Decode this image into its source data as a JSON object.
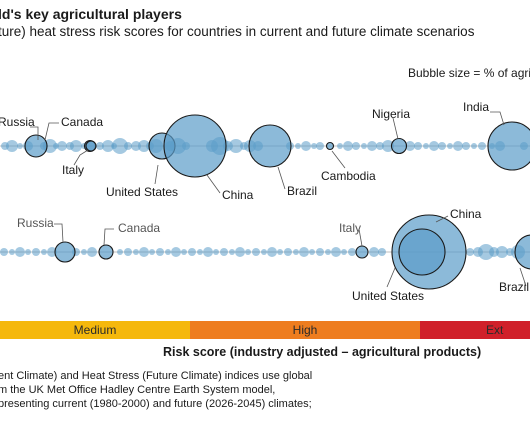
{
  "title": "ld's key agricultural players",
  "subtitle": "ture) heat stress risk scores for countries in current and future climate scenarios",
  "bubble_note": "Bubble size = % of agricu",
  "axis_title": "Risk score (industry adjusted – agricultural products)",
  "footnote_lines": [
    "ent Climate) and Heat Stress (Future Climate) indices use global",
    "m the UK Met Office Hadley Centre Earth System model,",
    "presenting current (1980-2000) and future (2026-2045) climates;"
  ],
  "risk_bands": [
    {
      "label": "Medium",
      "color": "#f5b80c"
    },
    {
      "label": "High",
      "color": "#ee7d1f"
    },
    {
      "label": "Ext",
      "color": "#d0202a"
    }
  ],
  "colors": {
    "bubble_fill": "#5b9cc9",
    "highlight_stroke": "#1a1a1a",
    "axis_line": "#bfbfbf"
  },
  "chart_data": {
    "type": "scatter",
    "x_scale": "risk score (industry adjusted)",
    "size_encoding": "% of agricu",
    "series": [
      {
        "highlighted": [
          {
            "label": "Russia",
            "x": 36,
            "r": 11
          },
          {
            "label": "Canada",
            "x": 90,
            "r": 5.5
          },
          {
            "label": "Italy",
            "x": 91,
            "r": 5
          },
          {
            "label": "United States",
            "x": 162,
            "r": 13
          },
          {
            "label": "China",
            "x": 195,
            "r": 31
          },
          {
            "label": "Brazil",
            "x": 270,
            "r": 21
          },
          {
            "label": "Cambodia",
            "x": 330,
            "r": 3.5
          },
          {
            "label": "Nigeria",
            "x": 399,
            "r": 7.5
          },
          {
            "label": "India",
            "x": 512,
            "r": 24
          }
        ],
        "others": [
          [
            5,
            4
          ],
          [
            12,
            6
          ],
          [
            20,
            3
          ],
          [
            28,
            5
          ],
          [
            44,
            4
          ],
          [
            50,
            7
          ],
          [
            56,
            3
          ],
          [
            62,
            5
          ],
          [
            70,
            4
          ],
          [
            76,
            6
          ],
          [
            84,
            3
          ],
          [
            100,
            4
          ],
          [
            108,
            6
          ],
          [
            114,
            3
          ],
          [
            120,
            8
          ],
          [
            128,
            4
          ],
          [
            136,
            5
          ],
          [
            144,
            6
          ],
          [
            150,
            4
          ],
          [
            156,
            7
          ],
          [
            170,
            5
          ],
          [
            178,
            8
          ],
          [
            186,
            4
          ],
          [
            212,
            6
          ],
          [
            220,
            9
          ],
          [
            228,
            5
          ],
          [
            236,
            7
          ],
          [
            244,
            4
          ],
          [
            250,
            6
          ],
          [
            258,
            5
          ],
          [
            290,
            4
          ],
          [
            298,
            3
          ],
          [
            306,
            5
          ],
          [
            314,
            3
          ],
          [
            320,
            4
          ],
          [
            340,
            3
          ],
          [
            348,
            5
          ],
          [
            356,
            4
          ],
          [
            364,
            3
          ],
          [
            372,
            5
          ],
          [
            380,
            4
          ],
          [
            388,
            6
          ],
          [
            410,
            5
          ],
          [
            418,
            4
          ],
          [
            426,
            3
          ],
          [
            434,
            5
          ],
          [
            442,
            4
          ],
          [
            450,
            3
          ],
          [
            458,
            5
          ],
          [
            466,
            4
          ],
          [
            474,
            3
          ],
          [
            482,
            4
          ],
          [
            492,
            3
          ],
          [
            500,
            5
          ],
          [
            524,
            4
          ]
        ]
      },
      {
        "highlighted": [
          {
            "label": "Russia",
            "x": 65,
            "r": 10
          },
          {
            "label": "Canada",
            "x": 106,
            "r": 7
          },
          {
            "label": "Italy",
            "x": 362,
            "r": 6
          },
          {
            "label": "China",
            "x": 429,
            "r": 37
          },
          {
            "label": "United States",
            "x": 422,
            "r": 23
          },
          {
            "label": "Brazil",
            "x": 532,
            "r": 17
          }
        ],
        "others": [
          [
            4,
            4
          ],
          [
            12,
            3
          ],
          [
            20,
            5
          ],
          [
            28,
            3
          ],
          [
            36,
            4
          ],
          [
            44,
            3
          ],
          [
            52,
            5
          ],
          [
            76,
            4
          ],
          [
            84,
            3
          ],
          [
            92,
            5
          ],
          [
            120,
            3
          ],
          [
            128,
            4
          ],
          [
            136,
            3
          ],
          [
            144,
            5
          ],
          [
            152,
            3
          ],
          [
            160,
            4
          ],
          [
            168,
            3
          ],
          [
            176,
            5
          ],
          [
            184,
            3
          ],
          [
            192,
            4
          ],
          [
            200,
            3
          ],
          [
            208,
            5
          ],
          [
            216,
            3
          ],
          [
            224,
            4
          ],
          [
            232,
            3
          ],
          [
            240,
            5
          ],
          [
            248,
            3
          ],
          [
            256,
            4
          ],
          [
            264,
            3
          ],
          [
            272,
            5
          ],
          [
            280,
            3
          ],
          [
            288,
            4
          ],
          [
            296,
            3
          ],
          [
            304,
            5
          ],
          [
            312,
            3
          ],
          [
            320,
            4
          ],
          [
            328,
            3
          ],
          [
            336,
            5
          ],
          [
            344,
            3
          ],
          [
            352,
            4
          ],
          [
            374,
            5
          ],
          [
            382,
            4
          ],
          [
            470,
            4
          ],
          [
            478,
            5
          ],
          [
            486,
            8
          ],
          [
            494,
            5
          ],
          [
            502,
            6
          ],
          [
            510,
            4
          ],
          [
            518,
            7
          ]
        ]
      }
    ]
  }
}
